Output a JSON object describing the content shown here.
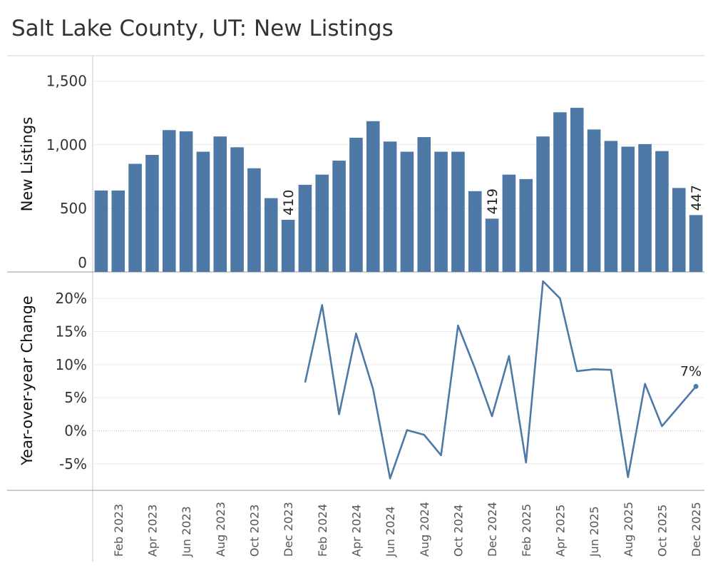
{
  "chart_data": [
    {
      "type": "bar",
      "title": "Salt Lake County, UT: New Listings",
      "ylabel": "New Listings",
      "ylim": [
        0,
        1700
      ],
      "yticks": [
        0,
        500,
        1000,
        1500
      ],
      "ytick_labels": [
        "0",
        "500",
        "1,000",
        "1,500"
      ],
      "color": "#4e79a7",
      "grid": true,
      "categories": [
        "Jan 2023",
        "Feb 2023",
        "Mar 2023",
        "Apr 2023",
        "May 2023",
        "Jun 2023",
        "Jul 2023",
        "Aug 2023",
        "Sep 2023",
        "Oct 2023",
        "Nov 2023",
        "Dec 2023",
        "Jan 2024",
        "Feb 2024",
        "Mar 2024",
        "Apr 2024",
        "May 2024",
        "Jun 2024",
        "Jul 2024",
        "Aug 2024",
        "Sep 2024",
        "Oct 2024",
        "Nov 2024",
        "Dec 2024",
        "Jan 2025",
        "Feb 2025",
        "Mar 2025",
        "Apr 2025",
        "May 2025",
        "Jun 2025",
        "Jul 2025",
        "Aug 2025",
        "Sep 2025",
        "Oct 2025",
        "Nov 2025",
        "Dec 2025"
      ],
      "values": [
        640,
        640,
        850,
        920,
        1115,
        1105,
        945,
        1065,
        980,
        815,
        580,
        410,
        685,
        765,
        875,
        1055,
        1185,
        1025,
        945,
        1060,
        945,
        945,
        635,
        419,
        765,
        730,
        1065,
        1255,
        1290,
        1120,
        1030,
        985,
        1005,
        950,
        660,
        447
      ],
      "data_labels": [
        {
          "category": "Dec 2023",
          "text": "410"
        },
        {
          "category": "Dec 2024",
          "text": "419"
        },
        {
          "category": "Dec 2025",
          "text": "447"
        }
      ]
    },
    {
      "type": "line",
      "ylabel": "Year-over-year Change",
      "ylim": [
        -9,
        24
      ],
      "yticks": [
        -5,
        0,
        5,
        10,
        15,
        20
      ],
      "ytick_labels": [
        "-5%",
        "0%",
        "5%",
        "10%",
        "15%",
        "20%"
      ],
      "color": "#4e79a7",
      "grid": true,
      "zero_line": "dotted",
      "categories": [
        "Jan 2024",
        "Feb 2024",
        "Mar 2024",
        "Apr 2024",
        "May 2024",
        "Jun 2024",
        "Jul 2024",
        "Aug 2024",
        "Sep 2024",
        "Oct 2024",
        "Nov 2024",
        "Dec 2024",
        "Jan 2025",
        "Feb 2025",
        "Mar 2025",
        "Apr 2025",
        "May 2025",
        "Jun 2025",
        "Jul 2025",
        "Aug 2025",
        "Sep 2025",
        "Oct 2025",
        "Nov 2025",
        "Dec 2025"
      ],
      "values": [
        7.3,
        19.0,
        2.5,
        14.7,
        6.3,
        -7.2,
        0.1,
        -0.6,
        -3.7,
        15.9,
        9.4,
        2.2,
        11.3,
        -4.8,
        22.6,
        20.0,
        9.0,
        9.3,
        9.2,
        -7.0,
        7.1,
        0.7,
        3.7,
        6.7
      ],
      "end_label": "7%"
    }
  ],
  "x_axis": {
    "tick_labels": [
      "Feb 2023",
      "Apr 2023",
      "Jun 2023",
      "Aug 2023",
      "Oct 2023",
      "Dec 2023",
      "Feb 2024",
      "Apr 2024",
      "Jun 2024",
      "Aug 2024",
      "Oct 2024",
      "Dec 2024",
      "Feb 2025",
      "Apr 2025",
      "Jun 2025",
      "Aug 2025",
      "Oct 2025",
      "Dec 2025"
    ]
  }
}
